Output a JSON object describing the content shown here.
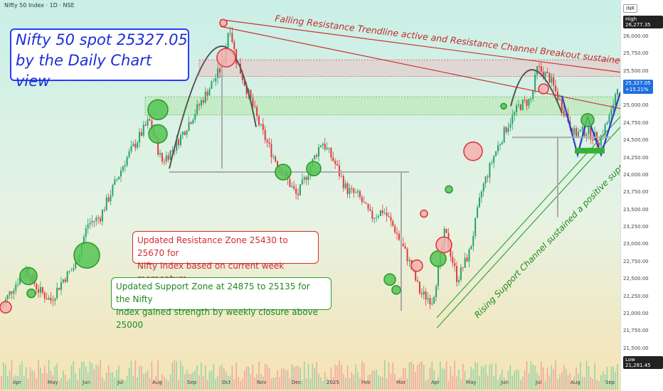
{
  "header": {
    "symbol": "Nifty 50 Index · 1D · NSE"
  },
  "annotations": {
    "title_line1": "Nifty 50 spot 25327.05",
    "title_line2": "by the Daily Chart view",
    "falling_resistance": "Falling Resistance Trendline active and Resistance Channel Breakout sustained",
    "resistance_line1": "Updated Resistance Zone 25430 to 25670 for",
    "resistance_line2": "Nifty Index based on current week momentum",
    "support_line1": "Updated Support Zone at 24875 to 25135 for the Nifty",
    "support_line2": "Index gained strength by weekly closure above 25000",
    "rising_support": "Rising Support Channel sustained a positive supportive role"
  },
  "colors": {
    "resistance": "#d52a2a",
    "support": "#2e9a2e",
    "title": "#1a2fd6",
    "up": "#26a269",
    "down": "#e0393e"
  },
  "chart_data": {
    "type": "candlestick",
    "currency": "INR",
    "y_ticks": [
      "26,000.00",
      "25,750.00",
      "25,500.00",
      "25,250.00",
      "25,000.00",
      "24,750.00",
      "24,500.00",
      "24,250.00",
      "24,000.00",
      "23,750.00",
      "23,500.00",
      "23,250.00",
      "23,000.00",
      "22,750.00",
      "22,500.00",
      "22,250.00",
      "22,000.00",
      "21,750.00",
      "21,500.00"
    ],
    "ylim": [
      21200,
      26450
    ],
    "x_labels": [
      "Apr",
      "May",
      "Jun",
      "Jul",
      "Aug",
      "Sep",
      "Oct",
      "Nov",
      "Dec",
      "2025",
      "Feb",
      "Mar",
      "Apr",
      "May",
      "Jun",
      "Jul",
      "Aug",
      "Sep"
    ],
    "high": {
      "label": "High",
      "value": "26,277.35"
    },
    "low": {
      "label": "Low",
      "value": "21,281.45"
    },
    "last": {
      "value": "25,327.05",
      "change": "+15.21%"
    },
    "resistance_zone": [
      25430,
      25670
    ],
    "support_zone": [
      24875,
      25135
    ],
    "close_path": [
      [
        0,
        22100
      ],
      [
        0.02,
        22400
      ],
      [
        0.04,
        22650
      ],
      [
        0.06,
        22350
      ],
      [
        0.08,
        22200
      ],
      [
        0.1,
        22500
      ],
      [
        0.12,
        22700
      ],
      [
        0.14,
        23300
      ],
      [
        0.16,
        23400
      ],
      [
        0.18,
        23800
      ],
      [
        0.2,
        24200
      ],
      [
        0.22,
        24500
      ],
      [
        0.24,
        24800
      ],
      [
        0.26,
        24200
      ],
      [
        0.28,
        24400
      ],
      [
        0.3,
        24700
      ],
      [
        0.32,
        25000
      ],
      [
        0.34,
        25300
      ],
      [
        0.36,
        25600
      ],
      [
        0.37,
        26200
      ],
      [
        0.38,
        25700
      ],
      [
        0.4,
        25200
      ],
      [
        0.42,
        24700
      ],
      [
        0.44,
        24300
      ],
      [
        0.46,
        24000
      ],
      [
        0.48,
        23700
      ],
      [
        0.5,
        24100
      ],
      [
        0.52,
        24500
      ],
      [
        0.54,
        24200
      ],
      [
        0.56,
        23800
      ],
      [
        0.58,
        23700
      ],
      [
        0.6,
        23400
      ],
      [
        0.62,
        23500
      ],
      [
        0.64,
        23200
      ],
      [
        0.66,
        22800
      ],
      [
        0.68,
        22300
      ],
      [
        0.7,
        22200
      ],
      [
        0.72,
        23200
      ],
      [
        0.74,
        22500
      ],
      [
        0.76,
        22900
      ],
      [
        0.78,
        23800
      ],
      [
        0.8,
        24300
      ],
      [
        0.82,
        24700
      ],
      [
        0.84,
        25000
      ],
      [
        0.86,
        25100
      ],
      [
        0.87,
        25550
      ],
      [
        0.89,
        25400
      ],
      [
        0.91,
        25000
      ],
      [
        0.93,
        24600
      ],
      [
        0.95,
        24650
      ],
      [
        0.97,
        24500
      ],
      [
        0.99,
        24900
      ],
      [
        1.0,
        25327
      ]
    ]
  }
}
